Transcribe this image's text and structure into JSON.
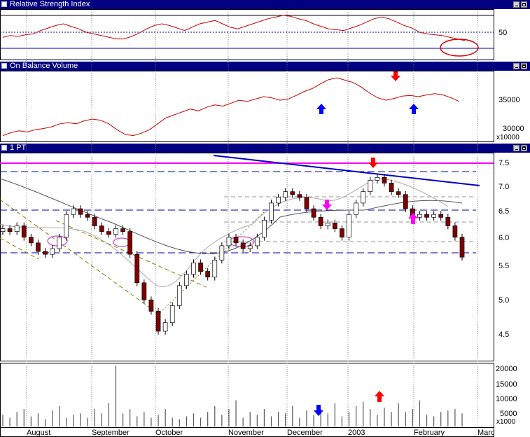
{
  "panels": {
    "rsi": {
      "title": "Relative Strength Index",
      "tick_label": "50"
    },
    "obv": {
      "title": "On Balance Volume",
      "tick_labels": [
        "35000",
        "30000"
      ],
      "multiplier": "x10000"
    },
    "price": {
      "title": "1 PT",
      "tick_labels": [
        "7.5",
        "7.0",
        "6.5",
        "6.0",
        "5.5",
        "5.0",
        "4.5"
      ]
    },
    "volume": {
      "tick_labels": [
        "20000",
        "15000",
        "10000",
        "5000"
      ],
      "multiplier": "x1000"
    }
  },
  "months": [
    "August",
    "September",
    "October",
    "November",
    "December",
    "2003",
    "February",
    "Marc"
  ],
  "colors": {
    "title_bar": "#000080",
    "rsi_line": "#cc0000",
    "obv_line": "#cc0000",
    "up_candle": "#ffffff",
    "down_candle": "#800000",
    "support_lines": "#0000aa",
    "resistance_line": "#ff00ff",
    "trend_line": "#0000cc",
    "annotation_up": "#0000ff",
    "annotation_down": "#ff0000",
    "annotation_pink": "#ff00ff"
  },
  "chart_data": [
    {
      "type": "line",
      "name": "rsi",
      "y_reference": 50,
      "values": [
        44,
        46,
        45,
        47,
        48,
        52,
        55,
        58,
        60,
        57,
        54,
        50,
        48,
        46,
        44,
        42,
        42,
        45,
        49,
        54,
        58,
        60,
        58,
        55,
        52,
        56,
        60,
        62,
        64,
        60,
        56,
        54,
        57,
        60,
        63,
        66,
        68,
        70,
        69,
        66,
        64,
        60,
        57,
        54,
        53,
        52,
        55,
        58,
        62,
        66,
        68,
        66,
        62,
        58,
        55,
        50,
        48,
        47,
        46,
        44,
        42,
        40
      ]
    },
    {
      "type": "line",
      "name": "obv",
      "ylim": [
        28000,
        40000
      ],
      "values": [
        29000,
        29500,
        29800,
        29600,
        30000,
        30200,
        30500,
        31000,
        31200,
        31000,
        31500,
        31800,
        31600,
        31000,
        30000,
        29200,
        29000,
        29400,
        30000,
        31000,
        32000,
        32500,
        33000,
        33500,
        33200,
        33800,
        34200,
        34000,
        34500,
        35000,
        34800,
        35200,
        35600,
        35400,
        35000,
        35200,
        35800,
        36500,
        37000,
        37800,
        38500,
        38800,
        38400,
        38000,
        37200,
        36200,
        35400,
        35000,
        35300,
        35700,
        35800,
        35600,
        35900,
        36100,
        35900,
        35400,
        34800
      ]
    },
    {
      "type": "candlestick",
      "name": "price",
      "ylim": [
        4.2,
        7.6
      ],
      "reference_levels": [
        7.45,
        7.3,
        6.5,
        5.75
      ],
      "closes": [
        6.35,
        6.3,
        6.4,
        6.2,
        6.1,
        5.95,
        5.9,
        6.0,
        6.2,
        6.6,
        6.7,
        6.6,
        6.55,
        6.4,
        6.3,
        6.25,
        6.35,
        6.3,
        5.9,
        5.4,
        5.1,
        4.9,
        4.55,
        4.7,
        5.0,
        5.35,
        5.55,
        5.75,
        5.6,
        5.5,
        5.8,
        6.05,
        6.2,
        6.1,
        6.0,
        6.05,
        6.2,
        6.5,
        6.8,
        6.9,
        7.0,
        6.95,
        6.9,
        6.7,
        6.55,
        6.4,
        6.45,
        6.35,
        6.2,
        6.6,
        6.8,
        7.0,
        7.2,
        7.25,
        7.15,
        7.0,
        6.95,
        6.7,
        6.55,
        6.6,
        6.55,
        6.6,
        6.55,
        6.4,
        6.2,
        5.85
      ]
    },
    {
      "type": "bar",
      "name": "volume",
      "ylim": [
        0,
        22000
      ],
      "values": [
        4000,
        3000,
        5000,
        6000,
        3500,
        4500,
        2500,
        5500,
        7000,
        3000,
        4000,
        4500,
        3000,
        6000,
        4500,
        8000,
        21000,
        4500,
        6000,
        3500,
        5000,
        3000,
        4000,
        6000,
        3000,
        2500,
        3500,
        4500,
        3000,
        5000,
        7000,
        4000,
        6000,
        9000,
        3000,
        5000,
        4000,
        6000,
        3500,
        5000,
        4500,
        7000,
        3000,
        5500,
        4000,
        6000,
        4500,
        8000,
        3500,
        5000,
        7000,
        8500,
        6000,
        4000,
        6500,
        5000,
        8000,
        5000,
        6000,
        9000,
        4000,
        3500,
        5000,
        5500,
        6000,
        4500
      ]
    }
  ]
}
